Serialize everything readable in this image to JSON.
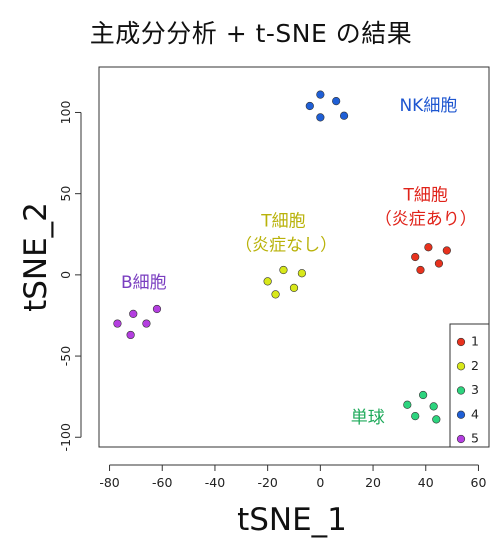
{
  "chart_data": {
    "type": "scatter",
    "title": "主成分分析 + t-SNE の結果",
    "xlabel": "tSNE_1",
    "ylabel": "tSNE_2",
    "xlim": [
      -84,
      64
    ],
    "ylim": [
      -106,
      128
    ],
    "x_ticks": [
      -80,
      -60,
      -40,
      -20,
      0,
      20,
      40,
      60
    ],
    "y_ticks": [
      -100,
      -50,
      0,
      50,
      100
    ],
    "x_tick_labels": [
      "-80",
      "-60",
      "-40",
      "-20",
      "0",
      "20",
      "40",
      "60"
    ],
    "y_tick_labels": [
      "-100",
      "-50",
      "0",
      "50",
      "100"
    ],
    "grid": false,
    "legend_position": "bottom-right",
    "series": [
      {
        "name": "1",
        "color": "#e8321e",
        "points": [
          [
            36,
            11
          ],
          [
            41,
            17
          ],
          [
            48,
            15
          ],
          [
            38,
            3
          ],
          [
            45,
            7
          ]
        ]
      },
      {
        "name": "2",
        "color": "#d8e81a",
        "points": [
          [
            -20,
            -4
          ],
          [
            -14,
            3
          ],
          [
            -7,
            1
          ],
          [
            -17,
            -12
          ],
          [
            -10,
            -8
          ]
        ]
      },
      {
        "name": "3",
        "color": "#2dd47e",
        "points": [
          [
            33,
            -80
          ],
          [
            39,
            -74
          ],
          [
            43,
            -81
          ],
          [
            36,
            -87
          ],
          [
            44,
            -89
          ]
        ]
      },
      {
        "name": "4",
        "color": "#1f5fd6",
        "points": [
          [
            -4,
            104
          ],
          [
            0,
            111
          ],
          [
            6,
            107
          ],
          [
            0,
            97
          ],
          [
            9,
            98
          ]
        ]
      },
      {
        "name": "5",
        "color": "#b43ee0",
        "points": [
          [
            -77,
            -30
          ],
          [
            -71,
            -24
          ],
          [
            -62,
            -21
          ],
          [
            -72,
            -37
          ],
          [
            -66,
            -30
          ]
        ]
      }
    ],
    "annotations": [
      {
        "text": "NK細胞",
        "color": "#1e56d0",
        "x": 41,
        "y": 104
      },
      {
        "text": "T細胞",
        "color": "#e0231a",
        "x": 40,
        "y": 49
      },
      {
        "text": "（炎症あり）",
        "color": "#e0231a",
        "x": 40,
        "y": 34
      },
      {
        "text": "T細胞",
        "color": "#b9b20a",
        "x": -14,
        "y": 33
      },
      {
        "text": "（炎症なし）",
        "color": "#b9b20a",
        "x": -13,
        "y": 18
      },
      {
        "text": "B細胞",
        "color": "#7a3ec0",
        "x": -67,
        "y": -5
      },
      {
        "text": "単球",
        "color": "#1faa5b",
        "x": 18,
        "y": -88
      }
    ]
  }
}
